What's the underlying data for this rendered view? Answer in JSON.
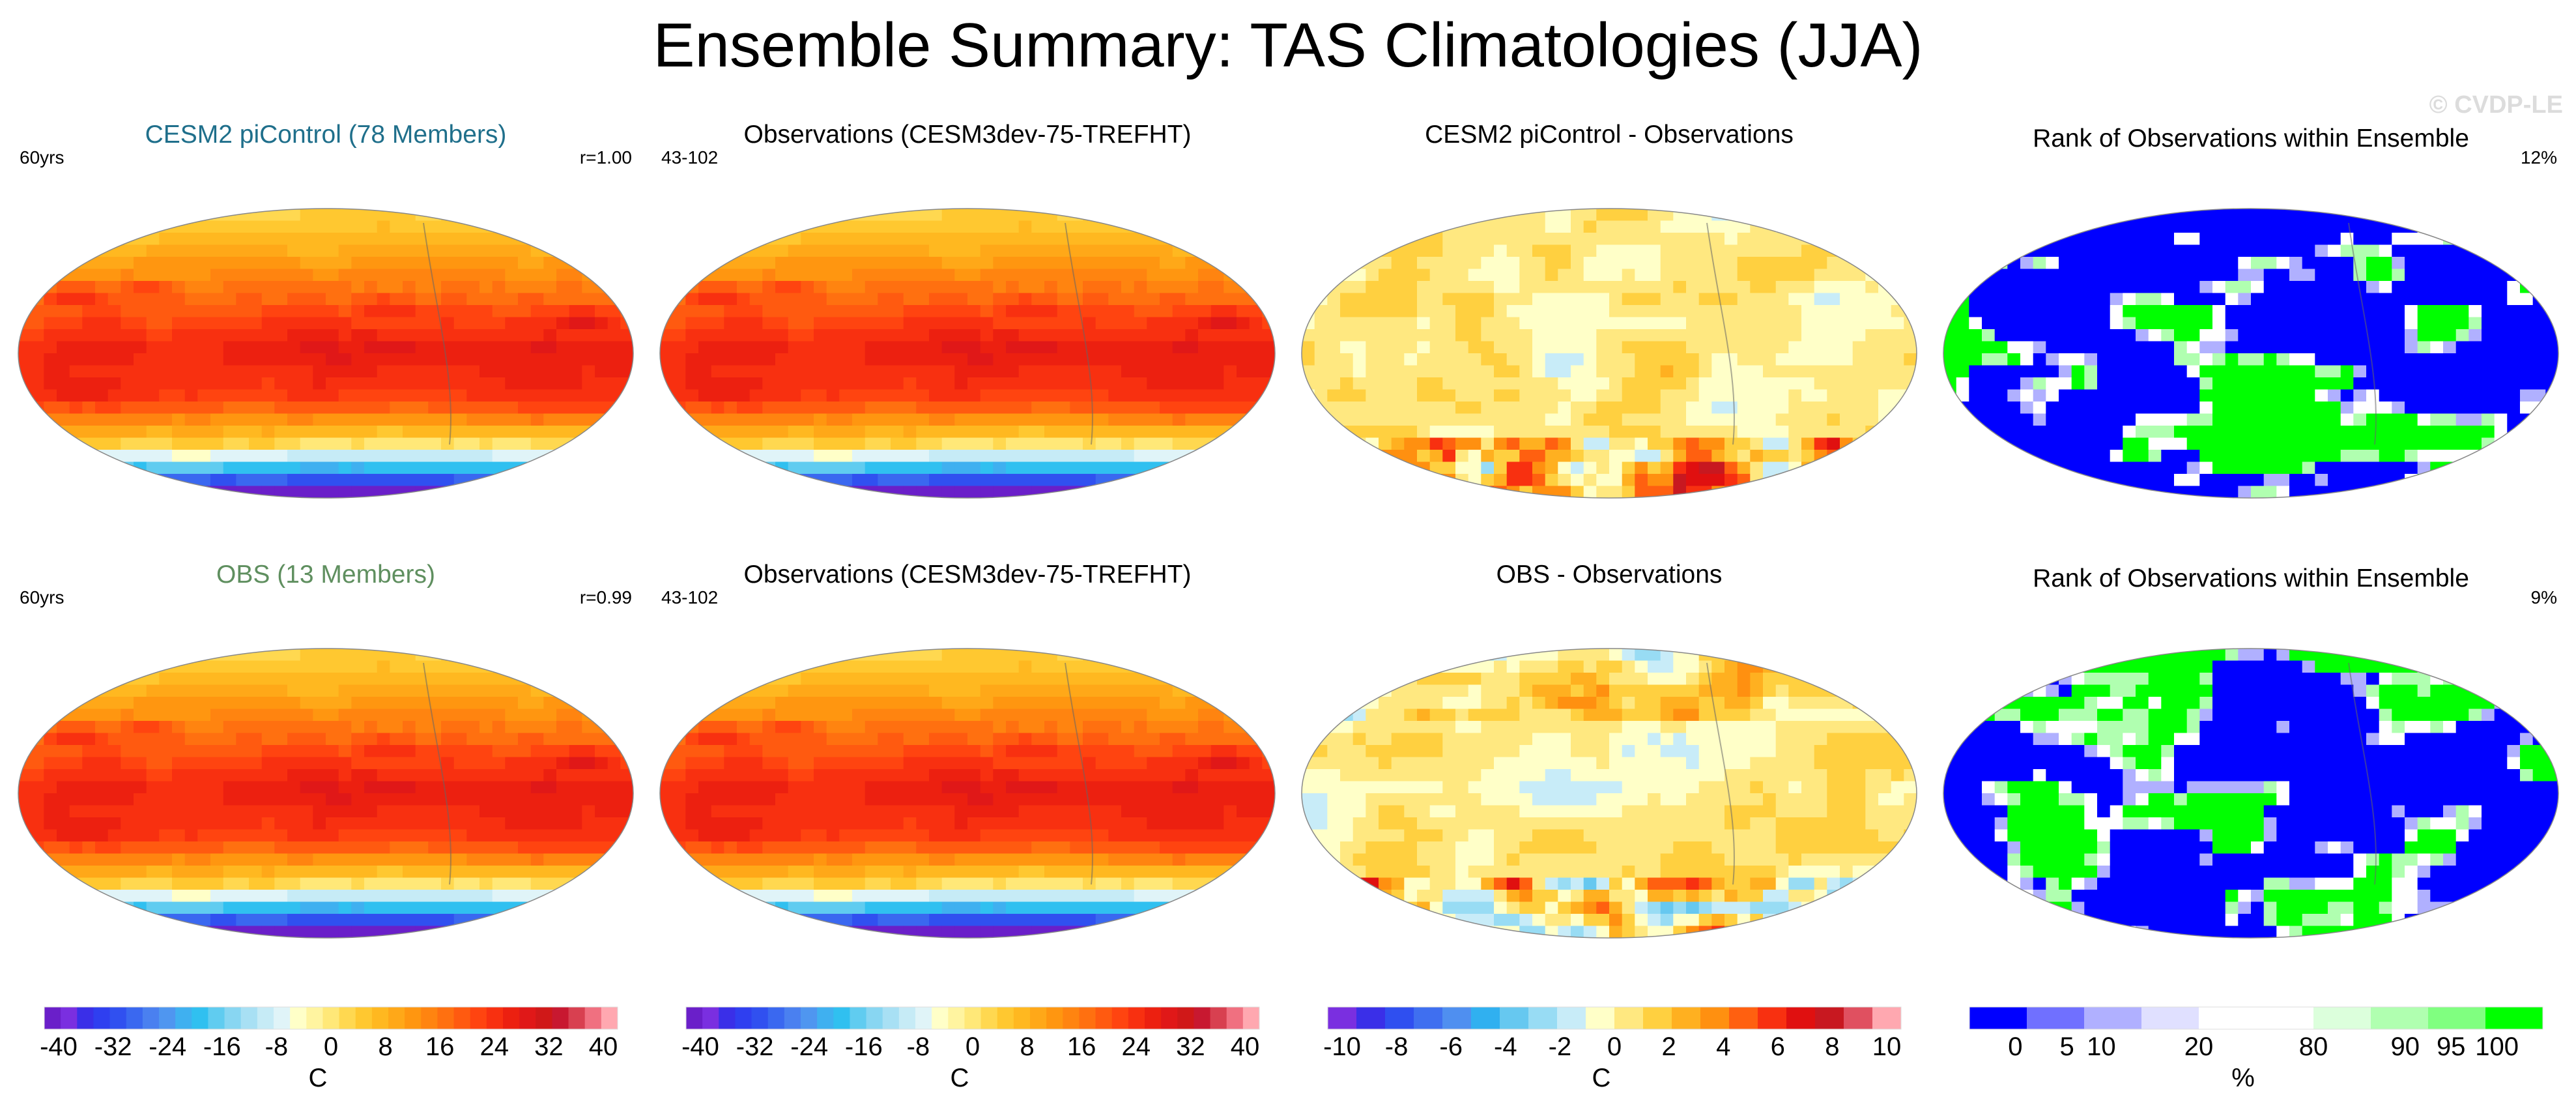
{
  "title": "Ensemble Summary: TAS Climatologies (JJA)",
  "watermark": "© CVDP-LE",
  "chart_data": [
    {
      "type": "heatmap",
      "id": "p1",
      "title": "CESM2 piControl (78 Members)",
      "title_color": "#1f6f8b",
      "left_text": "60yrs",
      "right_text": "r=1.00",
      "field": "tas",
      "scale": "tas"
    },
    {
      "type": "heatmap",
      "id": "p2",
      "title": "Observations (CESM3dev-75-TREFHT)",
      "title_color": "#000000",
      "left_text": "43-102",
      "right_text": "",
      "field": "tas",
      "scale": "tas"
    },
    {
      "type": "heatmap",
      "id": "p3",
      "title": "CESM2 piControl - Observations",
      "title_color": "#000000",
      "left_text": "",
      "right_text": "",
      "field": "diff1",
      "scale": "diff"
    },
    {
      "type": "heatmap",
      "id": "p4",
      "title": "Rank of Observations within Ensemble",
      "title_color": "#000000",
      "left_text": "",
      "right_text": "12%",
      "field": "rank1",
      "scale": "rank"
    },
    {
      "type": "heatmap",
      "id": "p5",
      "title": "OBS (13 Members)",
      "title_color": "#5f8f5f",
      "left_text": "60yrs",
      "right_text": "r=0.99",
      "field": "tas",
      "scale": "tas"
    },
    {
      "type": "heatmap",
      "id": "p6",
      "title": "Observations (CESM3dev-75-TREFHT)",
      "title_color": "#000000",
      "left_text": "43-102",
      "right_text": "",
      "field": "tas",
      "scale": "tas"
    },
    {
      "type": "heatmap",
      "id": "p7",
      "title": "OBS - Observations",
      "title_color": "#000000",
      "left_text": "",
      "right_text": "",
      "field": "diff2",
      "scale": "diff"
    },
    {
      "type": "heatmap",
      "id": "p8",
      "title": "Rank of Observations within Ensemble",
      "title_color": "#000000",
      "left_text": "",
      "right_text": "9%",
      "field": "rank2",
      "scale": "rank"
    }
  ],
  "colorbars": {
    "tas": {
      "unit": "C",
      "colors": [
        "#6a1fc9",
        "#7a2fe0",
        "#3a2fe8",
        "#2f3ff0",
        "#3050f0",
        "#3a68f0",
        "#4a80f0",
        "#4f96f0",
        "#3fb0f0",
        "#30c0f0",
        "#60ccf0",
        "#88d6f2",
        "#a8e0f4",
        "#c6ebf6",
        "#e0f4f8",
        "#ffffc8",
        "#fff4a0",
        "#ffe878",
        "#ffd850",
        "#ffc830",
        "#ffb820",
        "#ffa818",
        "#ff9610",
        "#ff8410",
        "#ff7010",
        "#ff5a10",
        "#ff4410",
        "#f83010",
        "#ec2010",
        "#e01818",
        "#d01818",
        "#c81830",
        "#d84050",
        "#f07080",
        "#ffa8b0"
      ],
      "ticks": [
        "-40",
        "-32",
        "-24",
        "-16",
        "-8",
        "0",
        "8",
        "16",
        "24",
        "32",
        "40"
      ]
    },
    "diff": {
      "unit": "C",
      "colors": [
        "#7a2fe0",
        "#3a2fe8",
        "#2f4ff0",
        "#3f6ff0",
        "#4f8ff0",
        "#30b0f0",
        "#66c8f0",
        "#98dcf4",
        "#c8ecf8",
        "#ffffc8",
        "#ffe880",
        "#ffd040",
        "#ffb020",
        "#ff9010",
        "#ff6010",
        "#f83010",
        "#e01010",
        "#c81820",
        "#e05060",
        "#ffa8b0"
      ],
      "ticks": [
        "-10",
        "-8",
        "-6",
        "-4",
        "-2",
        "0",
        "2",
        "4",
        "6",
        "8",
        "10"
      ]
    },
    "rank": {
      "unit": "%",
      "colors": [
        "#0000ff",
        "#7070ff",
        "#b0b0ff",
        "#e0e0ff",
        "#ffffff",
        "#ffffff",
        "#dcffdc",
        "#b0ffb0",
        "#80ff80",
        "#00ff00"
      ],
      "ticks": [
        "0",
        "5",
        "10",
        "20",
        "80",
        "90",
        "95",
        "100"
      ],
      "tick_values": [
        0,
        5,
        10,
        20,
        80,
        90,
        95,
        100
      ]
    }
  }
}
